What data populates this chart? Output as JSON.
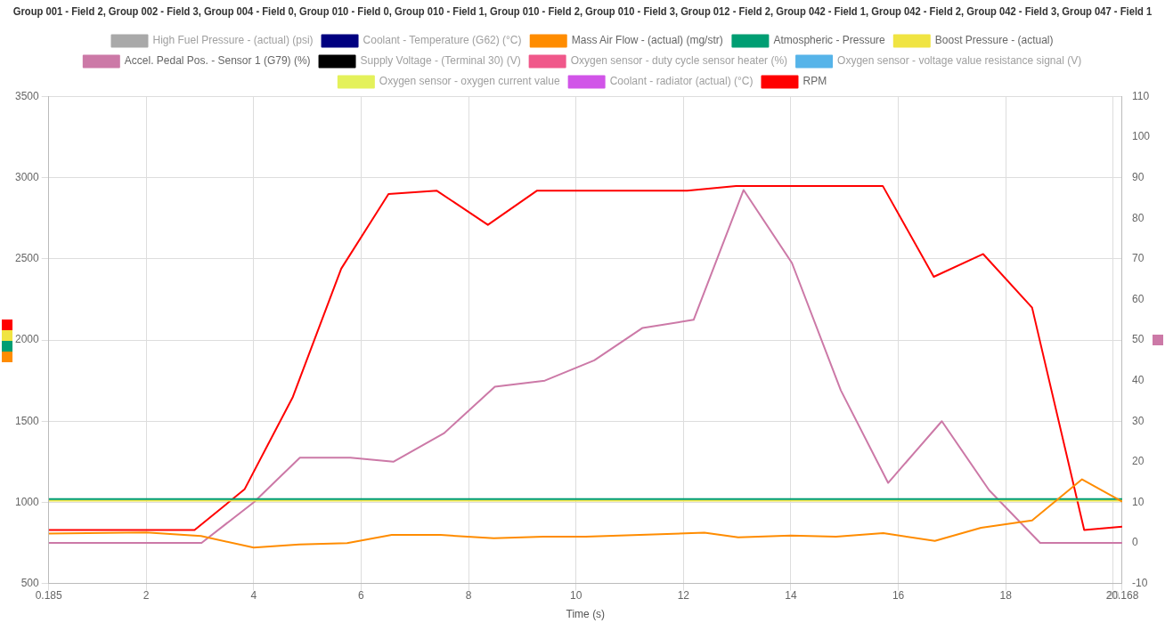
{
  "chart_data": {
    "type": "line",
    "title": "Group 001 - Field 2, Group 002 - Field 3, Group 004 - Field 0, Group 010 - Field 0, Group 010 - Field 1, Group 010 - Field 2, Group 010 - Field 3, Group 012 - Field 2, Group 042 - Field 1, Group 042 - Field 2, Group 042 - Field 3, Group 047 - Field 1",
    "xlabel": "Time (s)",
    "xlim": [
      0.185,
      20.168
    ],
    "xticks": [
      0.185,
      2,
      4,
      6,
      8,
      10,
      12,
      14,
      16,
      18,
      20,
      20.168
    ],
    "ylim": [
      500,
      3500
    ],
    "yticks": [
      500,
      1000,
      1500,
      2000,
      2500,
      3000,
      3500
    ],
    "y2lim": [
      -10,
      110
    ],
    "y2ticks": [
      -10,
      0,
      10,
      20,
      30,
      40,
      50,
      60,
      70,
      80,
      90,
      100,
      110
    ],
    "grid": true,
    "legend": "top",
    "marker": "none",
    "line_style": "solid",
    "series": [
      {
        "name": "High Fuel Pressure - (actual) (psi)",
        "color": "#a9a9a9"
      },
      {
        "name": "Coolant - Temperature (G62) (°C)",
        "color": "#000080"
      },
      {
        "name": "Mass Air Flow - (actual) (mg/str)",
        "color": "#ff8c00",
        "x": [
          0.185,
          2.0,
          3.02,
          4.0,
          4.85,
          5.74,
          6.57,
          7.48,
          8.47,
          9.39,
          10.18,
          12.39,
          13.02,
          14.0,
          14.84,
          15.72,
          16.68,
          17.54,
          18.49,
          19.42,
          20.168
        ],
        "values": [
          807,
          815,
          793,
          721,
          740,
          749,
          799,
          799,
          779,
          788,
          789,
          813,
          784,
          796,
          789,
          810,
          762,
          843,
          889,
          1142,
          1004
        ]
      },
      {
        "name": "Atmospheric - Pressure",
        "color": "#009e73",
        "x": [
          0.185,
          20.168
        ],
        "values": [
          1020,
          1020
        ]
      },
      {
        "name": "Boost Pressure - (actual)",
        "color": "#f0e442",
        "x": [
          0.185,
          20.168
        ],
        "values": [
          1010,
          1010
        ]
      },
      {
        "name": "Accel. Pedal Pos. - Sensor 1 (G79) (%)",
        "color": "#cc79a7",
        "axis": "y2",
        "x": [
          0.185,
          3.03,
          4.0,
          4.86,
          5.8,
          6.6,
          7.54,
          8.49,
          9.42,
          10.34,
          11.24,
          12.19,
          13.12,
          14.02,
          14.93,
          15.81,
          16.81,
          17.69,
          18.64,
          20.168
        ],
        "values": [
          0,
          0,
          10,
          21,
          21,
          20,
          27,
          38.5,
          40,
          45,
          53,
          55,
          87,
          69,
          37.6,
          14.8,
          30,
          13,
          0,
          0
        ]
      },
      {
        "name": "Supply Voltage - (Terminal 30) (V)",
        "color": "#000000"
      },
      {
        "name": "Oxygen sensor - duty cycle sensor heater (%)",
        "color": "#f0588a"
      },
      {
        "name": "Oxygen sensor - voltage value resistance signal (V)",
        "color": "#56b4e9"
      },
      {
        "name": "Oxygen sensor - oxygen current value",
        "color": "#e4f15a"
      },
      {
        "name": "Coolant - radiator (actual) (°C)",
        "color": "#d155e8"
      },
      {
        "name": "RPM",
        "color": "#ff0000",
        "x": [
          0.185,
          2.9,
          3.83,
          4.73,
          5.63,
          6.51,
          7.41,
          8.36,
          9.27,
          10.22,
          11.17,
          12.07,
          12.98,
          13.88,
          14.83,
          15.71,
          16.66,
          17.58,
          18.49,
          19.46,
          20.168
        ],
        "values": [
          830,
          830,
          1080,
          1650,
          2440,
          2900,
          2920,
          2710,
          2920,
          2920,
          2920,
          2920,
          2950,
          2950,
          2950,
          2950,
          2390,
          2530,
          2200,
          830,
          850
        ]
      }
    ]
  }
}
